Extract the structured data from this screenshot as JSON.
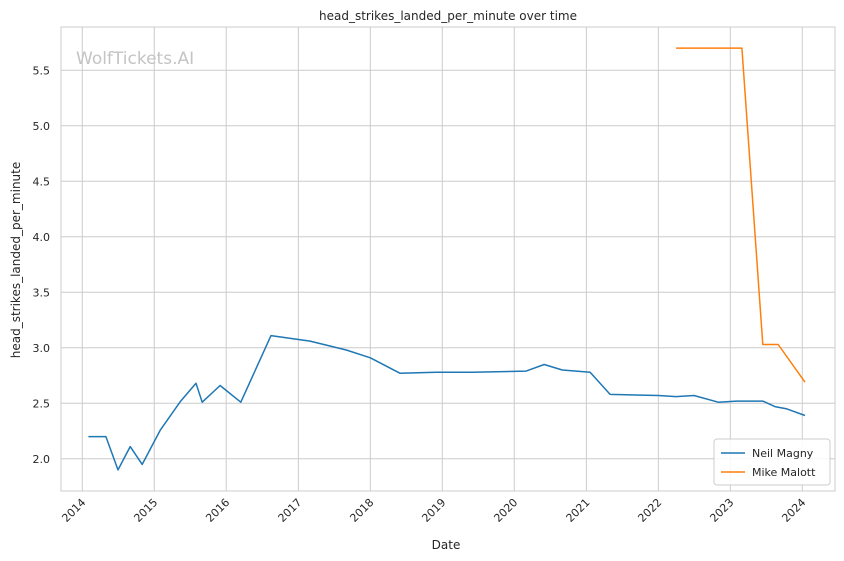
{
  "chart_data": {
    "type": "line",
    "title": "head_strikes_landed_per_minute over time",
    "xlabel": "Date",
    "ylabel": "head_strikes_landed_per_minute",
    "watermark": "WolfTickets.AI",
    "xlim": [
      "2013-09-15",
      "2024-06-15"
    ],
    "ylim": [
      1.71,
      5.89
    ],
    "x_ticks": [
      "2014",
      "2015",
      "2016",
      "2017",
      "2018",
      "2019",
      "2020",
      "2021",
      "2022",
      "2023",
      "2024"
    ],
    "y_ticks": [
      "2.0",
      "2.5",
      "3.0",
      "3.5",
      "4.0",
      "4.5",
      "5.0",
      "5.5"
    ],
    "grid": true,
    "legend_position": "lower-right",
    "series": [
      {
        "name": "Neil Magny",
        "color": "#1f77b4",
        "x": [
          "2014-02-01",
          "2014-05-01",
          "2014-07-01",
          "2014-09-01",
          "2014-11-01",
          "2015-02-01",
          "2015-05-15",
          "2015-08-01",
          "2015-09-01",
          "2015-12-01",
          "2016-03-15",
          "2016-08-15",
          "2017-03-01",
          "2017-09-01",
          "2018-01-01",
          "2018-06-01",
          "2018-12-01",
          "2019-06-01",
          "2020-03-01",
          "2020-06-01",
          "2020-09-01",
          "2021-01-20",
          "2021-05-01",
          "2022-01-01",
          "2022-04-01",
          "2022-07-01",
          "2022-11-01",
          "2023-02-01",
          "2023-06-15",
          "2023-08-15",
          "2023-10-15",
          "2024-01-15"
        ],
        "y": [
          2.2,
          2.2,
          1.9,
          2.11,
          1.95,
          2.26,
          2.52,
          2.68,
          2.51,
          2.66,
          2.51,
          3.11,
          3.06,
          2.98,
          2.91,
          2.77,
          2.78,
          2.78,
          2.79,
          2.85,
          2.8,
          2.78,
          2.58,
          2.57,
          2.56,
          2.57,
          2.51,
          2.52,
          2.52,
          2.47,
          2.45,
          2.39
        ]
      },
      {
        "name": "Mike Malott",
        "color": "#ff7f0e",
        "x": [
          "2022-04-01",
          "2023-03-01",
          "2023-06-15",
          "2023-09-01",
          "2024-01-15"
        ],
        "y": [
          5.7,
          5.7,
          3.03,
          3.03,
          2.69
        ]
      }
    ]
  }
}
